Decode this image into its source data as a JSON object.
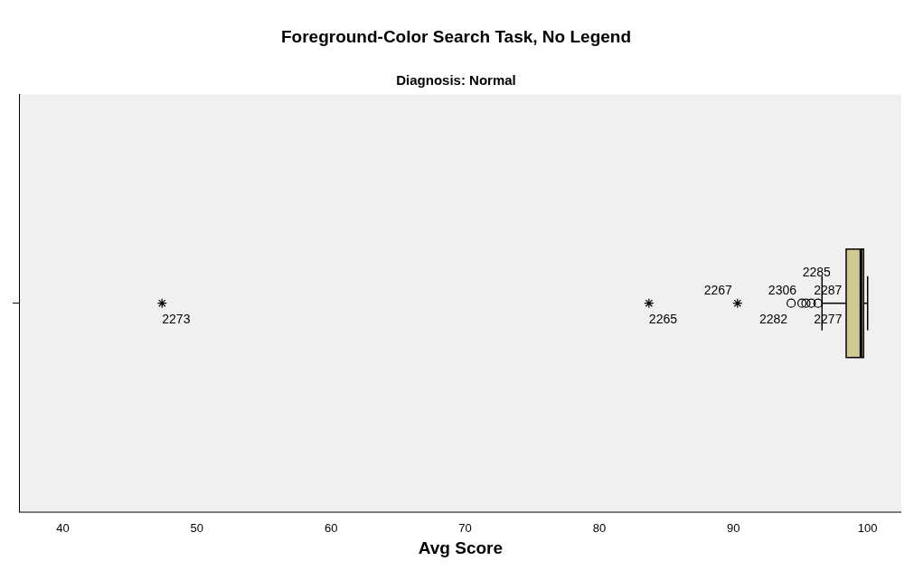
{
  "chart_data": {
    "type": "box",
    "title": "Foreground-Color Search Task, No Legend",
    "subtitle": "Diagnosis: Normal",
    "xlabel": "Avg Score",
    "orientation": "horizontal",
    "categories": [
      null
    ],
    "boxes": [
      {
        "low": 96.6,
        "q1": 98.4,
        "median": 99.5,
        "q3": 99.7,
        "high": 100
      }
    ],
    "color": "#cfca94",
    "series": [
      {
        "type": "scatter",
        "marker": "cross",
        "color": "#000000",
        "x": [
          null,
          null,
          null
        ],
        "values": [
          47.4,
          83.7,
          90.3
        ]
      },
      {
        "type": "scatter",
        "marker": "circle",
        "color": "#000000",
        "x": [
          null,
          null,
          null,
          null,
          null
        ],
        "values": [
          94.3,
          95.1,
          95.4,
          95.8,
          96.3
        ]
      }
    ],
    "annotations": [
      "2273",
      "2265",
      "2267",
      "2282",
      "2306",
      "2277",
      "2287",
      "2285"
    ],
    "xlim": [
      36.8,
      102.5
    ],
    "xticks": [
      40,
      50,
      60,
      70,
      80,
      90,
      100
    ],
    "grid": false,
    "legend": false
  }
}
